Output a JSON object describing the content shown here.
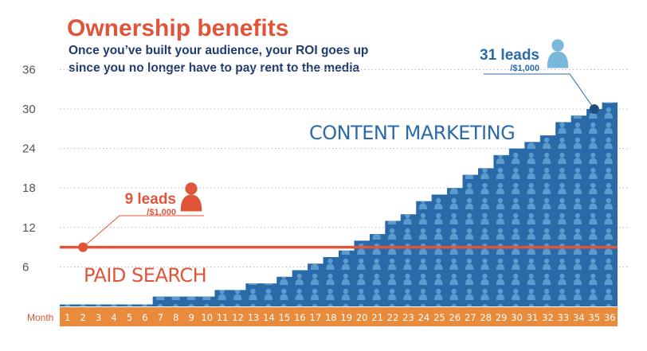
{
  "chart_data": {
    "type": "area",
    "title": "Ownership benefits",
    "subtitle_lines": [
      "Once you’ve built your audience, your ROI goes up",
      "since you no longer have to pay rent to the media"
    ],
    "xlabel": "Month",
    "x": [
      1,
      2,
      3,
      4,
      5,
      6,
      7,
      8,
      9,
      10,
      11,
      12,
      13,
      14,
      15,
      16,
      17,
      18,
      19,
      20,
      21,
      22,
      23,
      24,
      25,
      26,
      27,
      28,
      29,
      30,
      31,
      32,
      33,
      34,
      35,
      36
    ],
    "yticks": [
      6,
      12,
      18,
      24,
      30,
      36
    ],
    "ylim": [
      0,
      36
    ],
    "grid": true,
    "series": [
      {
        "name": "CONTENT MARKETING",
        "type": "area",
        "color": "#2a6aa8",
        "values": [
          0.3,
          0.3,
          0.3,
          0.3,
          0.3,
          0.3,
          1.5,
          1.5,
          1.5,
          1.5,
          2.5,
          2.5,
          3.5,
          3.5,
          4.5,
          5.5,
          6.5,
          7.5,
          8.5,
          10,
          11,
          13,
          14,
          16,
          17,
          18,
          20,
          21,
          23,
          24,
          25,
          26,
          28,
          29,
          30,
          31
        ]
      },
      {
        "name": "PAID SEARCH",
        "type": "line",
        "color": "#e0553a",
        "values": [
          9,
          9,
          9,
          9,
          9,
          9,
          9,
          9,
          9,
          9,
          9,
          9,
          9,
          9,
          9,
          9,
          9,
          9,
          9,
          9,
          9,
          9,
          9,
          9,
          9,
          9,
          9,
          9,
          9,
          9,
          9,
          9,
          9,
          9,
          9,
          9
        ]
      }
    ],
    "annotations": [
      {
        "series": "PAID SEARCH",
        "month": 2,
        "value": 9,
        "label": "9 leads",
        "sublabel": "/$1,000",
        "icon": "person-icon",
        "color": "#e0553a"
      },
      {
        "series": "CONTENT MARKETING",
        "month": 35,
        "value": 30,
        "label": "31 leads",
        "sublabel": "/$1,000",
        "icon": "person-icon",
        "color": "#2a6aa8",
        "icon_color": "#7ab8d9"
      }
    ],
    "axis_band_color": "#e98b3c"
  }
}
